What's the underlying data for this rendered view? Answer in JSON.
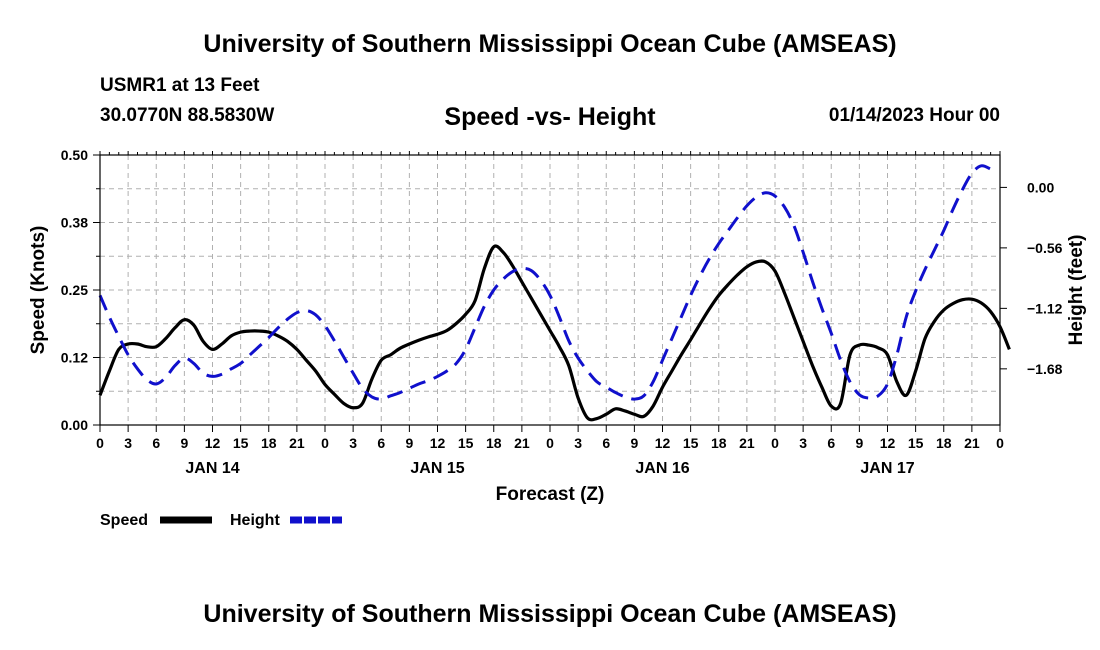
{
  "header": {
    "title": "University of Southern Mississippi Ocean Cube (AMSEAS)",
    "footer_title": "University of Southern Mississippi Ocean Cube (AMSEAS)",
    "station": "USMR1 at 13 Feet",
    "coords": "30.0770N  88.5830W",
    "date": "01/14/2023 Hour 00"
  },
  "chart_data": {
    "type": "line",
    "title": "Speed -vs- Height",
    "xlabel": "Forecast (Z)",
    "ylabel_left": "Speed (Knots)",
    "ylabel_right": "Height (feet)",
    "x_hours_range": [
      0,
      96
    ],
    "x_tick_step_hours": 3,
    "x_tick_labels": [
      "0",
      "3",
      "6",
      "9",
      "12",
      "15",
      "18",
      "21",
      "0",
      "3",
      "6",
      "9",
      "12",
      "15",
      "18",
      "21",
      "0",
      "3",
      "6",
      "9",
      "12",
      "15",
      "18",
      "21",
      "0",
      "3",
      "6",
      "9",
      "12",
      "15",
      "18",
      "21",
      "0"
    ],
    "day_labels": [
      {
        "hour": 12,
        "label": "JAN 14"
      },
      {
        "hour": 36,
        "label": "JAN 15"
      },
      {
        "hour": 60,
        "label": "JAN 16"
      },
      {
        "hour": 84,
        "label": "JAN 17"
      }
    ],
    "ylim_left": [
      0,
      0.5
    ],
    "yticks_left": [
      0.0,
      0.125,
      0.25,
      0.375,
      0.5
    ],
    "ytick_labels_left": [
      "0.00",
      "0.12",
      "0.25",
      "0.38",
      "0.50"
    ],
    "ylim_right": [
      -2.2,
      0.3
    ],
    "yticks_right": [
      -1.68,
      -1.12,
      -0.56,
      0.0
    ],
    "ytick_labels_right": [
      "−1.68",
      "−1.12",
      "−0.56",
      "0.00"
    ],
    "grid": true,
    "legend": [
      {
        "label": "Speed",
        "color": "#000000",
        "dash": "solid"
      },
      {
        "label": "Height",
        "color": "#1010cc",
        "dash": "dashed"
      }
    ],
    "series": [
      {
        "name": "Speed",
        "axis": "left",
        "color": "#000000",
        "points": [
          [
            0,
            0.055
          ],
          [
            1,
            0.1
          ],
          [
            2,
            0.14
          ],
          [
            3,
            0.15
          ],
          [
            4,
            0.15
          ],
          [
            5,
            0.145
          ],
          [
            6,
            0.145
          ],
          [
            7,
            0.16
          ],
          [
            8,
            0.18
          ],
          [
            9,
            0.195
          ],
          [
            10,
            0.185
          ],
          [
            11,
            0.155
          ],
          [
            12,
            0.14
          ],
          [
            13,
            0.15
          ],
          [
            14,
            0.165
          ],
          [
            15,
            0.172
          ],
          [
            16,
            0.174
          ],
          [
            17,
            0.174
          ],
          [
            18,
            0.172
          ],
          [
            19,
            0.165
          ],
          [
            20,
            0.155
          ],
          [
            21,
            0.14
          ],
          [
            22,
            0.12
          ],
          [
            23,
            0.1
          ],
          [
            24,
            0.075
          ],
          [
            25,
            0.057
          ],
          [
            26,
            0.04
          ],
          [
            27,
            0.032
          ],
          [
            28,
            0.04
          ],
          [
            29,
            0.085
          ],
          [
            30,
            0.12
          ],
          [
            31,
            0.13
          ],
          [
            32,
            0.142
          ],
          [
            33,
            0.15
          ],
          [
            34,
            0.157
          ],
          [
            35,
            0.163
          ],
          [
            36,
            0.168
          ],
          [
            37,
            0.175
          ],
          [
            38,
            0.188
          ],
          [
            39,
            0.205
          ],
          [
            40,
            0.23
          ],
          [
            41,
            0.29
          ],
          [
            42,
            0.33
          ],
          [
            43,
            0.32
          ],
          [
            44,
            0.295
          ],
          [
            45,
            0.265
          ],
          [
            46,
            0.235
          ],
          [
            47,
            0.205
          ],
          [
            48,
            0.175
          ],
          [
            49,
            0.145
          ],
          [
            50,
            0.11
          ],
          [
            51,
            0.05
          ],
          [
            52,
            0.013
          ],
          [
            53,
            0.012
          ],
          [
            54,
            0.02
          ],
          [
            55,
            0.03
          ],
          [
            56,
            0.026
          ],
          [
            57,
            0.02
          ],
          [
            58,
            0.016
          ],
          [
            59,
            0.035
          ],
          [
            60,
            0.07
          ],
          [
            61,
            0.1
          ],
          [
            62,
            0.13
          ],
          [
            63,
            0.158
          ],
          [
            64,
            0.187
          ],
          [
            65,
            0.215
          ],
          [
            66,
            0.24
          ],
          [
            67,
            0.26
          ],
          [
            68,
            0.278
          ],
          [
            69,
            0.293
          ],
          [
            70,
            0.302
          ],
          [
            71,
            0.302
          ],
          [
            72,
            0.285
          ],
          [
            73,
            0.245
          ],
          [
            74,
            0.2
          ],
          [
            75,
            0.155
          ],
          [
            76,
            0.11
          ],
          [
            77,
            0.07
          ],
          [
            78,
            0.035
          ],
          [
            79,
            0.04
          ],
          [
            80,
            0.13
          ],
          [
            81,
            0.148
          ],
          [
            82,
            0.148
          ],
          [
            83,
            0.143
          ],
          [
            84,
            0.13
          ],
          [
            85,
            0.08
          ],
          [
            86,
            0.055
          ],
          [
            87,
            0.1
          ],
          [
            88,
            0.16
          ],
          [
            89,
            0.192
          ],
          [
            90,
            0.213
          ],
          [
            91,
            0.225
          ],
          [
            92,
            0.232
          ],
          [
            93,
            0.233
          ],
          [
            94,
            0.226
          ],
          [
            95,
            0.21
          ],
          [
            96,
            0.182
          ],
          [
            97,
            0.14
          ]
        ]
      },
      {
        "name": "Height",
        "axis": "right",
        "color": "#1010cc",
        "points": [
          [
            0,
            -1.0
          ],
          [
            1,
            -1.2
          ],
          [
            2,
            -1.38
          ],
          [
            3,
            -1.55
          ],
          [
            4,
            -1.68
          ],
          [
            5,
            -1.78
          ],
          [
            6,
            -1.82
          ],
          [
            7,
            -1.76
          ],
          [
            8,
            -1.65
          ],
          [
            9,
            -1.58
          ],
          [
            10,
            -1.63
          ],
          [
            11,
            -1.72
          ],
          [
            12,
            -1.75
          ],
          [
            13,
            -1.73
          ],
          [
            14,
            -1.68
          ],
          [
            15,
            -1.63
          ],
          [
            16,
            -1.55
          ],
          [
            17,
            -1.47
          ],
          [
            18,
            -1.39
          ],
          [
            19,
            -1.3
          ],
          [
            20,
            -1.22
          ],
          [
            21,
            -1.16
          ],
          [
            22,
            -1.14
          ],
          [
            23,
            -1.18
          ],
          [
            24,
            -1.28
          ],
          [
            25,
            -1.42
          ],
          [
            26,
            -1.57
          ],
          [
            27,
            -1.72
          ],
          [
            28,
            -1.86
          ],
          [
            29,
            -1.94
          ],
          [
            30,
            -1.96
          ],
          [
            31,
            -1.93
          ],
          [
            32,
            -1.9
          ],
          [
            33,
            -1.86
          ],
          [
            34,
            -1.82
          ],
          [
            35,
            -1.79
          ],
          [
            36,
            -1.75
          ],
          [
            37,
            -1.7
          ],
          [
            38,
            -1.63
          ],
          [
            39,
            -1.5
          ],
          [
            40,
            -1.3
          ],
          [
            41,
            -1.1
          ],
          [
            42,
            -0.95
          ],
          [
            43,
            -0.85
          ],
          [
            44,
            -0.78
          ],
          [
            45,
            -0.75
          ],
          [
            46,
            -0.77
          ],
          [
            47,
            -0.86
          ],
          [
            48,
            -1.0
          ],
          [
            49,
            -1.2
          ],
          [
            50,
            -1.42
          ],
          [
            51,
            -1.58
          ],
          [
            52,
            -1.7
          ],
          [
            53,
            -1.8
          ],
          [
            54,
            -1.85
          ],
          [
            55,
            -1.9
          ],
          [
            56,
            -1.94
          ],
          [
            57,
            -1.96
          ],
          [
            58,
            -1.93
          ],
          [
            59,
            -1.8
          ],
          [
            60,
            -1.6
          ],
          [
            61,
            -1.4
          ],
          [
            62,
            -1.2
          ],
          [
            63,
            -1.0
          ],
          [
            64,
            -0.82
          ],
          [
            65,
            -0.66
          ],
          [
            66,
            -0.52
          ],
          [
            67,
            -0.4
          ],
          [
            68,
            -0.28
          ],
          [
            69,
            -0.17
          ],
          [
            70,
            -0.09
          ],
          [
            71,
            -0.05
          ],
          [
            72,
            -0.08
          ],
          [
            73,
            -0.18
          ],
          [
            74,
            -0.35
          ],
          [
            75,
            -0.6
          ],
          [
            76,
            -0.87
          ],
          [
            77,
            -1.12
          ],
          [
            78,
            -1.35
          ],
          [
            79,
            -1.6
          ],
          [
            80,
            -1.8
          ],
          [
            81,
            -1.92
          ],
          [
            82,
            -1.95
          ],
          [
            83,
            -1.93
          ],
          [
            84,
            -1.82
          ],
          [
            85,
            -1.55
          ],
          [
            86,
            -1.2
          ],
          [
            87,
            -0.96
          ],
          [
            88,
            -0.76
          ],
          [
            89,
            -0.58
          ],
          [
            90,
            -0.4
          ],
          [
            91,
            -0.2
          ],
          [
            92,
            -0.02
          ],
          [
            93,
            0.13
          ],
          [
            94,
            0.2
          ],
          [
            95,
            0.17
          ]
        ]
      }
    ]
  }
}
